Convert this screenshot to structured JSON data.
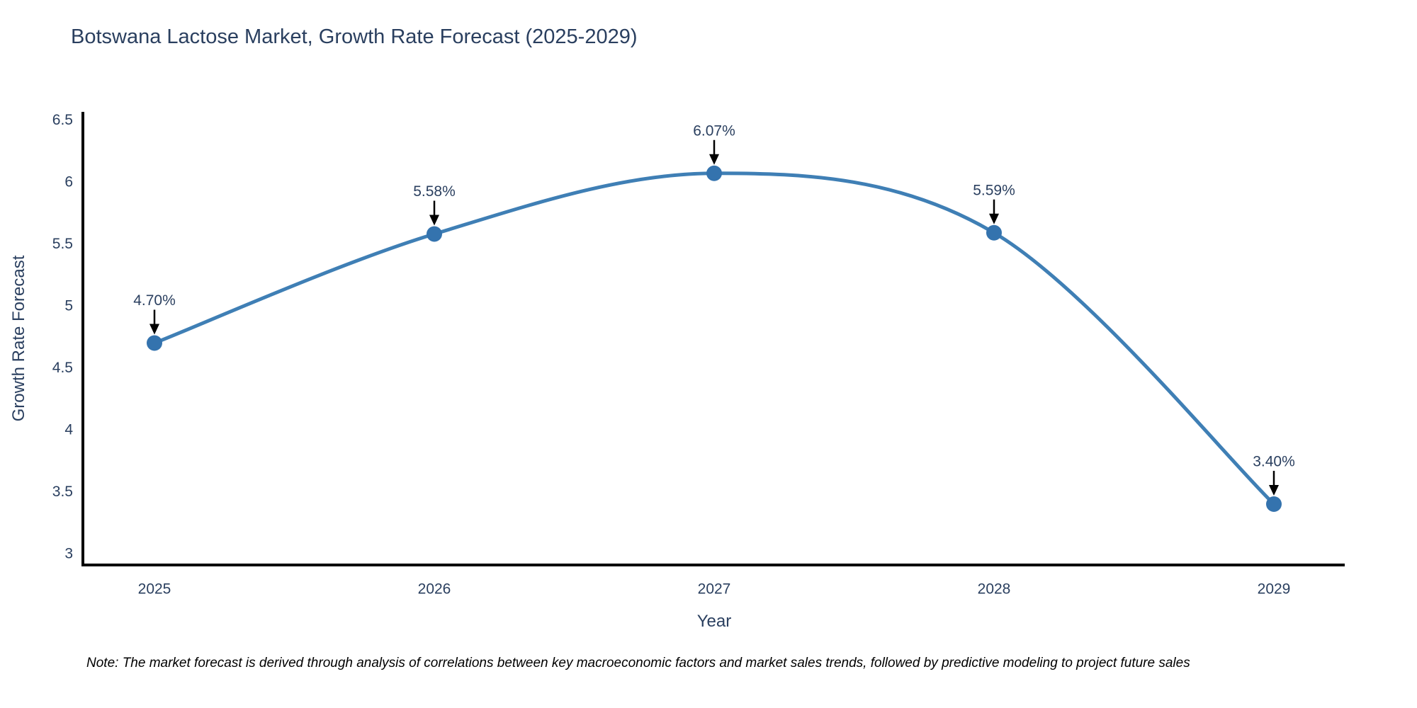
{
  "chart_data": {
    "type": "line",
    "title": "Botswana Lactose Market, Growth Rate Forecast (2025-2029)",
    "x": [
      2025,
      2026,
      2027,
      2028,
      2029
    ],
    "series": [
      {
        "name": "Growth Rate Forecast",
        "values": [
          4.7,
          5.58,
          6.07,
          5.59,
          3.4
        ]
      }
    ],
    "point_labels": [
      "4.70%",
      "5.58%",
      "6.07%",
      "5.59%",
      "3.40%"
    ],
    "xlabel": "Year",
    "ylabel": "Growth Rate Forecast",
    "yticks": [
      3,
      3.5,
      4,
      4.5,
      5,
      5.5,
      6,
      6.5
    ],
    "ylim": [
      2.9,
      6.6
    ],
    "grid": false,
    "legend": "none",
    "line_shape": "spline",
    "colors": {
      "line": "#3f7fb5",
      "marker": "#3473ae",
      "axis": "#000000",
      "tick_text": "#2a3f5f",
      "annotation_text": "#2a3f5f",
      "arrow": "#000000",
      "title_text": "#2a3f5f"
    }
  },
  "footnote": {
    "text": "Note: The market forecast is derived through analysis of correlations between key macroeconomic factors and market sales trends, followed by predictive modeling to project future sales"
  }
}
